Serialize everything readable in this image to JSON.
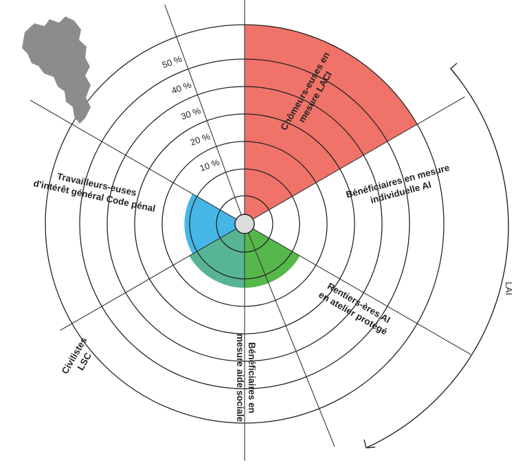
{
  "chart_data": {
    "type": "polar-area",
    "unit": "%",
    "r_ticks": [
      10,
      20,
      30,
      40,
      50
    ],
    "r_tick_labels": [
      "10 %",
      "20 %",
      "30 %",
      "40 %",
      "50 %"
    ],
    "rmax": 53,
    "categories": [
      {
        "label": [
          "Chômeurs-euses en",
          "mesure LACI"
        ],
        "value": 53,
        "color": "#f07369"
      },
      {
        "label": [
          "Bénéficiaires en mesure",
          "individuelle AI"
        ],
        "value": 2,
        "color": "#c9962b"
      },
      {
        "label": [
          "Rentiers-ères AI",
          "en atelier protégé"
        ],
        "value": 17,
        "color": "#56b84b"
      },
      {
        "label": [
          "Bénéficiaires en",
          "mesure aide sociale"
        ],
        "value": 17,
        "color": "#57b595"
      },
      {
        "label": [
          "Civilistes",
          "LSC"
        ],
        "value": 16,
        "color": "#45b7e6"
      },
      {
        "label": [
          "Travailleurs-euses",
          "d'intérêt général Code pénal"
        ],
        "value": 0,
        "color": "#888888"
      }
    ],
    "group_label": "LAI",
    "map_color": "#8c8c8c"
  }
}
